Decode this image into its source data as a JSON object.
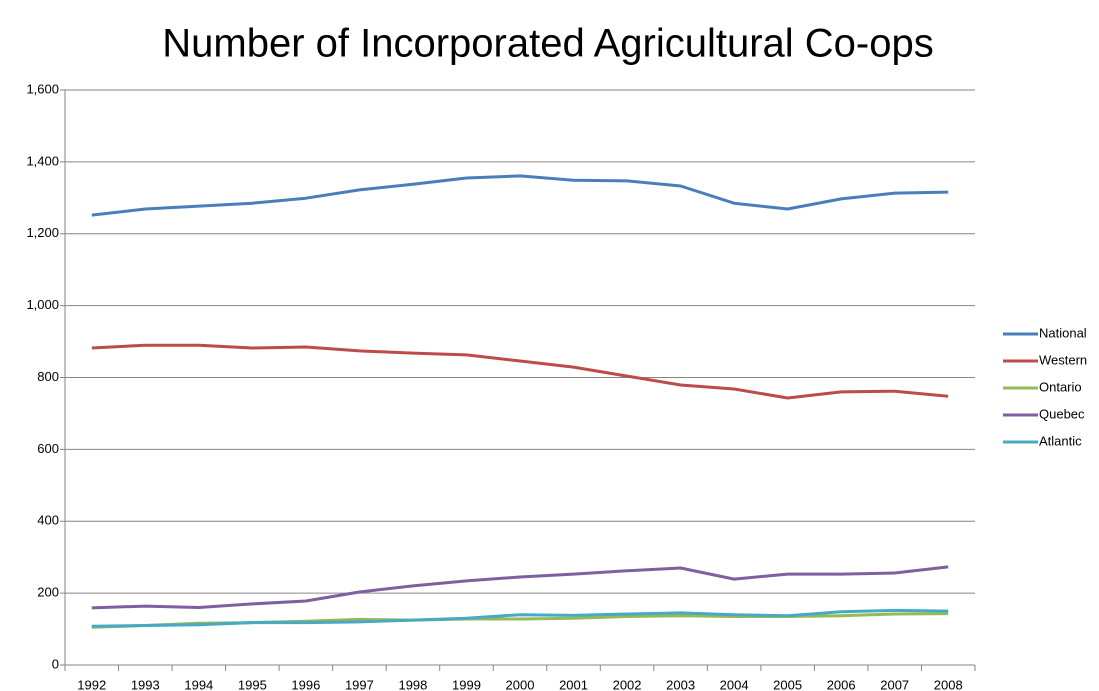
{
  "chart_data": {
    "type": "line",
    "title": "Number of Incorporated Agricultural Co-ops",
    "categories": [
      "1992",
      "1993",
      "1994",
      "1995",
      "1996",
      "1997",
      "1998",
      "1999",
      "2000",
      "2001",
      "2002",
      "2003",
      "2004",
      "2005",
      "2006",
      "2007",
      "2008"
    ],
    "series": [
      {
        "name": "National",
        "color": "#4a7ebb",
        "values": [
          1252,
          1269,
          1277,
          1285,
          1299,
          1322,
          1338,
          1355,
          1361,
          1349,
          1347,
          1333,
          1285,
          1269,
          1297,
          1313,
          1316
        ]
      },
      {
        "name": "Western",
        "color": "#be4b48",
        "values": [
          882,
          890,
          890,
          882,
          885,
          874,
          868,
          863,
          846,
          829,
          804,
          779,
          768,
          743,
          760,
          762,
          748
        ]
      },
      {
        "name": "Ontario",
        "color": "#98b954",
        "values": [
          105,
          110,
          116,
          118,
          122,
          127,
          125,
          128,
          128,
          130,
          135,
          137,
          135,
          135,
          137,
          142,
          143
        ]
      },
      {
        "name": "Quebec",
        "color": "#7d60a0",
        "values": [
          159,
          164,
          160,
          170,
          178,
          203,
          220,
          234,
          245,
          253,
          262,
          270,
          239,
          253,
          253,
          256,
          273
        ]
      },
      {
        "name": "Atlantic",
        "color": "#46aac5",
        "values": [
          108,
          110,
          112,
          118,
          118,
          120,
          125,
          130,
          140,
          138,
          142,
          145,
          140,
          137,
          148,
          152,
          150
        ]
      }
    ],
    "ylim": [
      0,
      1600
    ],
    "yticks": [
      0,
      200,
      400,
      600,
      800,
      {
        "value": 1000,
        "label": "1,000"
      },
      {
        "value": 1200,
        "label": "1,200"
      },
      {
        "value": 1400,
        "label": "1,400"
      },
      {
        "value": 1600,
        "label": "1,600"
      }
    ],
    "grid": true,
    "legend": "right"
  }
}
